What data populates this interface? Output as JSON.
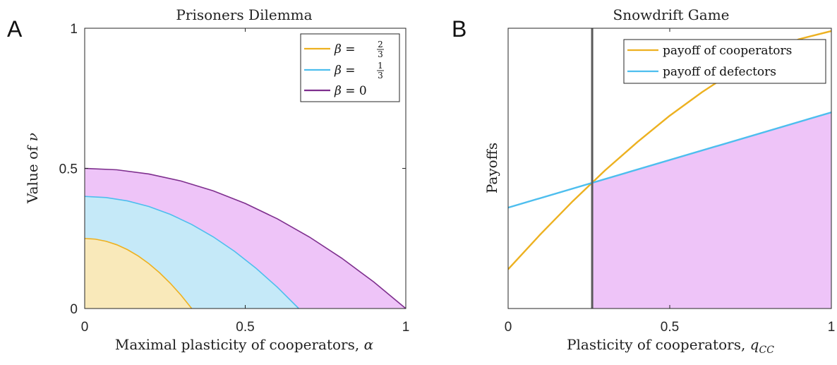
{
  "panels": {
    "A": {
      "letter": "A"
    },
    "B": {
      "letter": "B"
    }
  },
  "chart_data": [
    {
      "type": "area",
      "panel": "A",
      "title": "Prisoners Dilemma",
      "xlabel": "Maximal plasticity of cooperators, α",
      "xlabel_text": "Maximal plasticity of cooperators, ",
      "xlabel_symbol": "α",
      "ylabel": "Value of ν",
      "ylabel_text": "Value of ",
      "ylabel_symbol": "ν",
      "xlim": [
        0,
        1
      ],
      "ylim": [
        0,
        1
      ],
      "xticks": [
        0,
        0.5,
        1
      ],
      "xtick_labels": [
        "0",
        "0.5",
        "1"
      ],
      "yticks": [
        0,
        0.5,
        1
      ],
      "ytick_labels": [
        "0",
        "0.5",
        "1"
      ],
      "grid": false,
      "legend_position": "top-right",
      "series": [
        {
          "name": "β = 0",
          "legend_prefix": "β = ",
          "legend_value": "0",
          "line_color": "#7E2F8E",
          "fill_color": "#EEC4F8",
          "x": [
            0,
            0.1,
            0.2,
            0.3,
            0.4,
            0.5,
            0.6,
            0.7,
            0.8,
            0.9,
            1.0
          ],
          "y": [
            0.5,
            0.495,
            0.48,
            0.455,
            0.42,
            0.375,
            0.32,
            0.255,
            0.18,
            0.095,
            0.0
          ]
        },
        {
          "name": "β = 1/3",
          "legend_prefix": "β = ",
          "legend_num": "1",
          "legend_den": "3",
          "line_color": "#4DBEEE",
          "fill_color": "#C5E9F8",
          "x": [
            0,
            0.0667,
            0.1333,
            0.2,
            0.2667,
            0.3333,
            0.4,
            0.4667,
            0.5333,
            0.6,
            0.6667
          ],
          "y": [
            0.4,
            0.396,
            0.384,
            0.364,
            0.336,
            0.3,
            0.256,
            0.204,
            0.144,
            0.076,
            0.0
          ]
        },
        {
          "name": "β = 2/3",
          "legend_prefix": "β = ",
          "legend_num": "2",
          "legend_den": "3",
          "line_color": "#EDB120",
          "fill_color": "#F9E9BA",
          "x": [
            0,
            0.0333,
            0.0667,
            0.1,
            0.1333,
            0.1667,
            0.2,
            0.2333,
            0.2667,
            0.3,
            0.3333
          ],
          "y": [
            0.25,
            0.2475,
            0.24,
            0.2275,
            0.21,
            0.1875,
            0.16,
            0.1275,
            0.09,
            0.0475,
            0.0
          ]
        }
      ]
    },
    {
      "type": "line",
      "panel": "B",
      "title": "Snowdrift Game",
      "xlabel": "Plasticity of cooperators, qCC",
      "xlabel_text": "Plasticity of cooperators, ",
      "xlabel_symbol": "q",
      "xlabel_sub": "CC",
      "ylabel": "Payoffs",
      "xlim": [
        0,
        1
      ],
      "ylim": [
        0,
        1
      ],
      "xticks": [
        0,
        0.5,
        1
      ],
      "xtick_labels": [
        "0",
        "0.5",
        "1"
      ],
      "grid": false,
      "legend_position": "top-right",
      "vline_x": 0.26,
      "vline_color": "#5A5A5A",
      "fill_color": "#EEC4F8",
      "series": [
        {
          "name": "payoff of cooperators",
          "line_color": "#EDB120",
          "x": [
            0,
            0.1,
            0.2,
            0.26,
            0.3,
            0.4,
            0.5,
            0.6,
            0.7,
            0.8,
            0.9,
            1.0
          ],
          "y": [
            0.14,
            0.265,
            0.383,
            0.449,
            0.493,
            0.594,
            0.688,
            0.772,
            0.848,
            0.912,
            0.961,
            0.99
          ]
        },
        {
          "name": "payoff of defectors",
          "line_color": "#4DBEEE",
          "x": [
            0,
            1.0
          ],
          "y": [
            0.36,
            0.7
          ]
        }
      ]
    }
  ]
}
